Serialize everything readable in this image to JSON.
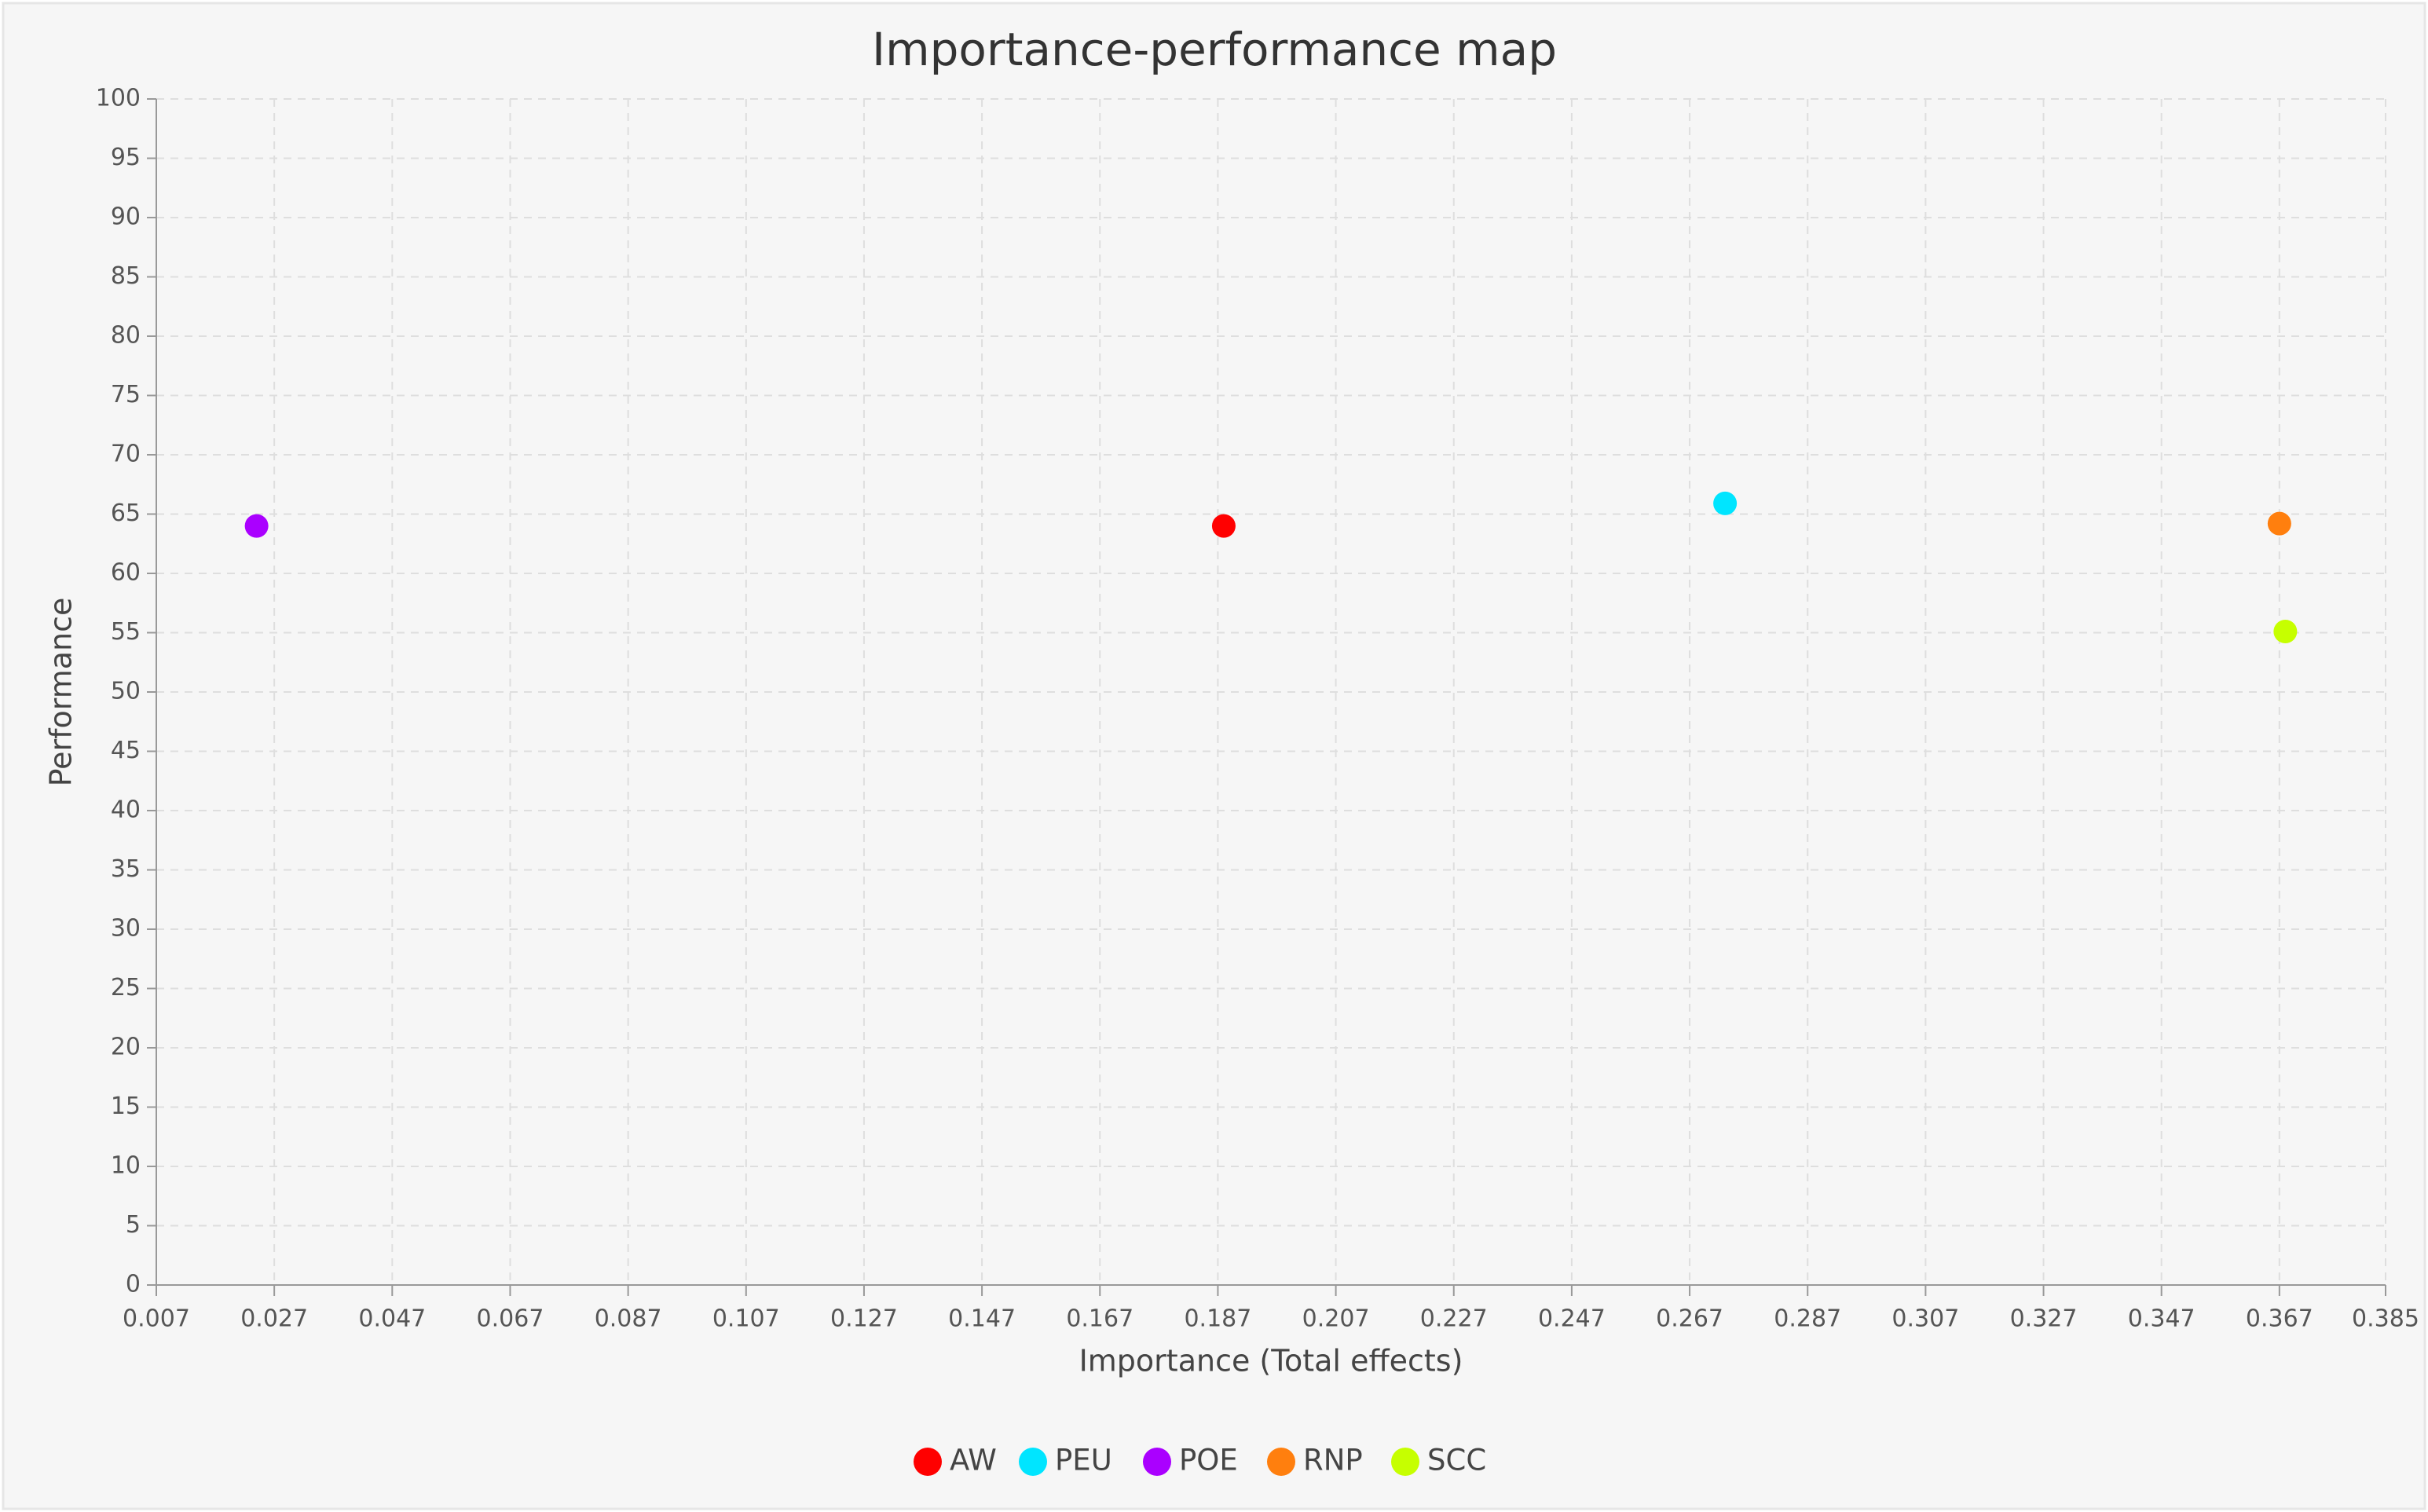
{
  "chart_data": {
    "type": "scatter",
    "title": "Importance-performance map",
    "x_label": "Importance (Total effects)",
    "y_label": "Performance",
    "xlim": [
      0.007,
      0.385
    ],
    "xticks": [
      0.007,
      0.027,
      0.047,
      0.067,
      0.087,
      0.107,
      0.127,
      0.147,
      0.167,
      0.187,
      0.207,
      0.227,
      0.247,
      0.267,
      0.287,
      0.307,
      0.327,
      0.347,
      0.367,
      0.385
    ],
    "ylim": [
      0,
      100
    ],
    "yticks": [
      0,
      5,
      10,
      15,
      20,
      25,
      30,
      35,
      40,
      45,
      50,
      55,
      60,
      65,
      70,
      75,
      80,
      85,
      90,
      95,
      100
    ],
    "grid": true,
    "legend": "bottom",
    "series": [
      {
        "name": "AW",
        "color": "#ff0000",
        "x": [
          0.188
        ],
        "y": [
          64.0
        ]
      },
      {
        "name": "PEU",
        "color": "#00e5ff",
        "x": [
          0.273
        ],
        "y": [
          65.9
        ]
      },
      {
        "name": "POE",
        "color": "#aa00ff",
        "x": [
          0.024
        ],
        "y": [
          64.0
        ]
      },
      {
        "name": "RNP",
        "color": "#ff7f0e",
        "x": [
          0.367
        ],
        "y": [
          64.2
        ]
      },
      {
        "name": "SCC",
        "color": "#c6ff00",
        "x": [
          0.368
        ],
        "y": [
          55.1
        ]
      }
    ]
  }
}
